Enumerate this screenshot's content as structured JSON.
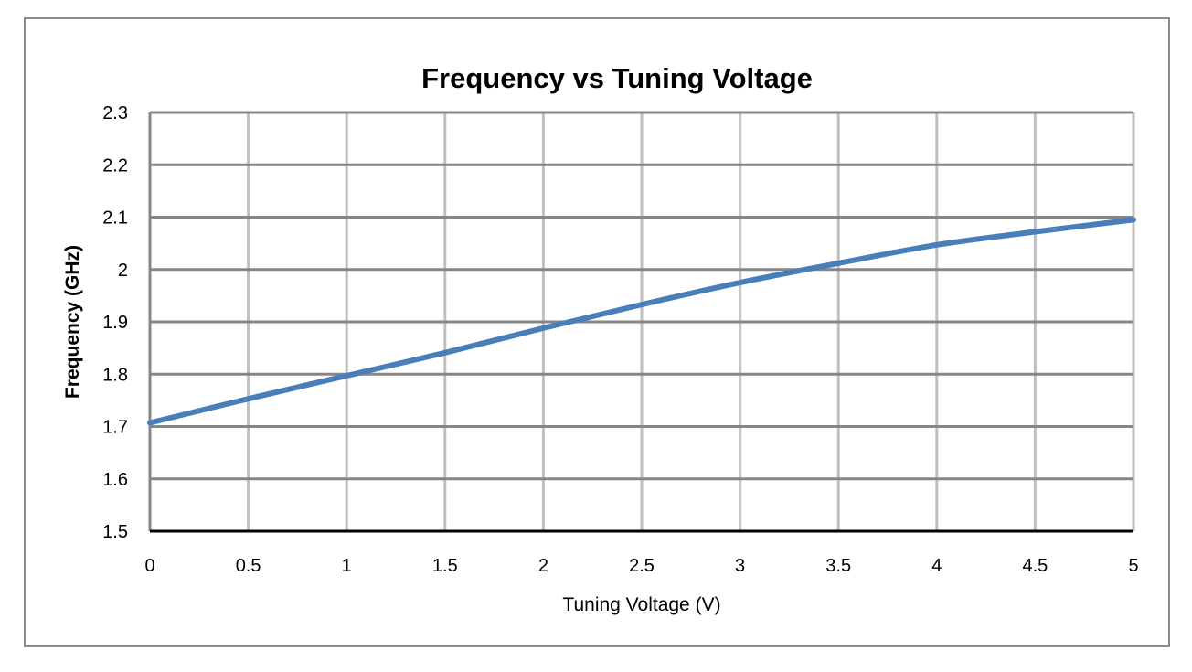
{
  "chart_data": {
    "type": "line",
    "title": "Frequency vs Tuning Voltage",
    "xlabel": "Tuning Voltage (V)",
    "ylabel": "Frequency (GHz)",
    "xlim": [
      0,
      5
    ],
    "ylim": [
      1.5,
      2.3
    ],
    "xticks": [
      "0",
      "0.5",
      "1",
      "1.5",
      "2",
      "2.5",
      "3",
      "3.5",
      "4",
      "4.5",
      "5"
    ],
    "yticks": [
      "1.5",
      "1.6",
      "1.7",
      "1.8",
      "1.9",
      "2",
      "2.1",
      "2.2",
      "2.3"
    ],
    "grid": true,
    "legend": "none",
    "series": [
      {
        "color": "#4a7ebb",
        "x": [
          0,
          0.5,
          1,
          1.5,
          2,
          2.5,
          3,
          3.5,
          4,
          4.5,
          5
        ],
        "y": [
          1.707,
          1.753,
          1.797,
          1.841,
          1.888,
          1.933,
          1.975,
          2.012,
          2.047,
          2.072,
          2.095
        ]
      }
    ]
  }
}
